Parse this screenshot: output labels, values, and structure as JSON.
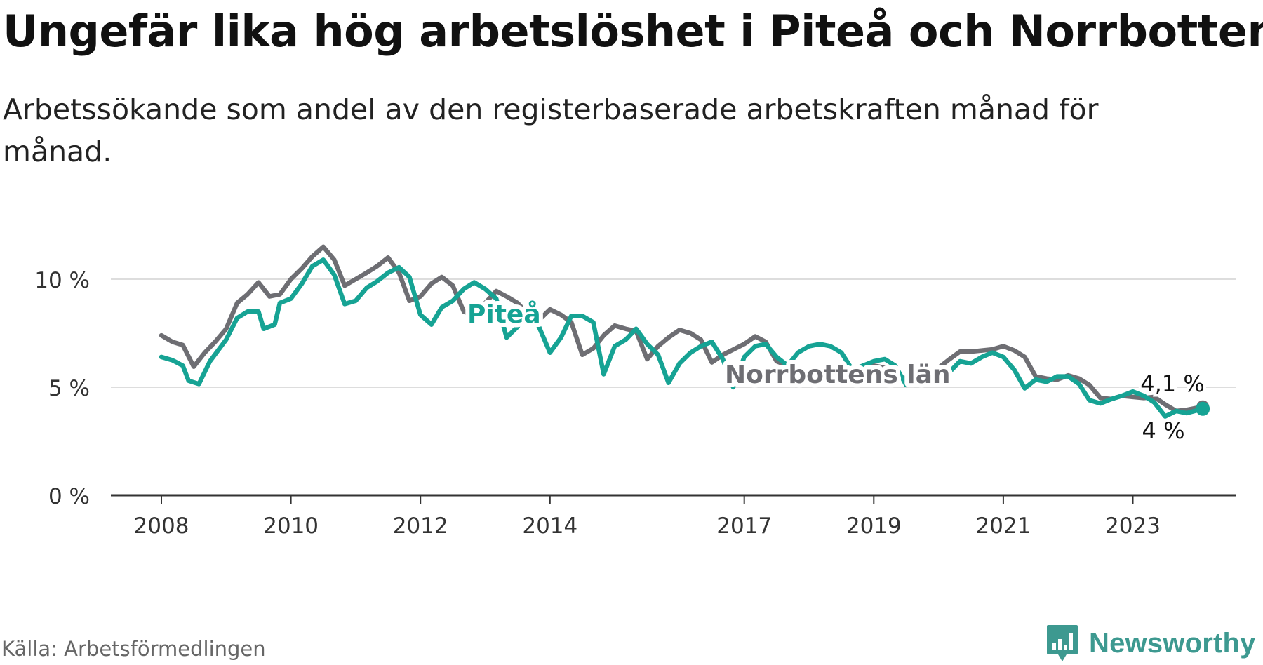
{
  "title": "Ungefär lika hög arbetslöshet i Piteå och Norrbotten",
  "subtitle": "Arbetssökande som andel av den registerbaserade arbetskraften månad för månad.",
  "source": "Källa: Arbetsförmedlingen",
  "brand": "Newsworthy",
  "colors": {
    "pitea": "#16a394",
    "norrbotten": "#6e6e73",
    "grid": "#dddddd",
    "axis": "#333333",
    "brand": "#3d9990"
  },
  "chart_data": {
    "type": "line",
    "title": "Ungefär lika hög arbetslöshet i Piteå och Norrbotten",
    "xlabel": "",
    "ylabel": "",
    "xlim": [
      2007.5,
      2024.92
    ],
    "ylim": [
      0,
      10.5
    ],
    "grid": true,
    "x_ticks": [
      2008,
      2010,
      2012,
      2014,
      2017,
      2019,
      2021,
      2023
    ],
    "x_tick_labels": [
      "2008",
      "2010",
      "2012",
      "2014",
      "2017",
      "2019",
      "2021",
      "2023"
    ],
    "y_ticks": [
      0,
      5,
      10
    ],
    "y_tick_labels": [
      "0 %",
      "5 %",
      "10 %"
    ],
    "series": [
      {
        "name": "Norrbottens län",
        "end_label": "4,1 %",
        "points": [
          [
            2008.0,
            7.4
          ],
          [
            2008.17,
            7.1
          ],
          [
            2008.33,
            6.95
          ],
          [
            2008.5,
            5.95
          ],
          [
            2008.67,
            6.6
          ],
          [
            2008.83,
            7.1
          ],
          [
            2009.0,
            7.7
          ],
          [
            2009.17,
            8.9
          ],
          [
            2009.33,
            9.3
          ],
          [
            2009.5,
            9.85
          ],
          [
            2009.67,
            9.2
          ],
          [
            2009.83,
            9.3
          ],
          [
            2010.0,
            10.0
          ],
          [
            2010.17,
            10.5
          ],
          [
            2010.33,
            11.05
          ],
          [
            2010.5,
            11.5
          ],
          [
            2010.67,
            10.9
          ],
          [
            2010.83,
            9.7
          ],
          [
            2011.0,
            10.0
          ],
          [
            2011.17,
            10.3
          ],
          [
            2011.33,
            10.6
          ],
          [
            2011.5,
            11.0
          ],
          [
            2011.67,
            10.3
          ],
          [
            2011.83,
            9.0
          ],
          [
            2012.0,
            9.2
          ],
          [
            2012.17,
            9.8
          ],
          [
            2012.33,
            10.1
          ],
          [
            2012.5,
            9.7
          ],
          [
            2012.67,
            8.5
          ],
          [
            2012.83,
            8.3
          ],
          [
            2013.0,
            8.9
          ],
          [
            2013.17,
            9.45
          ],
          [
            2013.33,
            9.2
          ],
          [
            2013.5,
            8.9
          ],
          [
            2013.67,
            8.35
          ],
          [
            2013.83,
            8.1
          ],
          [
            2014.0,
            8.6
          ],
          [
            2014.17,
            8.35
          ],
          [
            2014.33,
            8.0
          ],
          [
            2014.5,
            6.5
          ],
          [
            2014.67,
            6.8
          ],
          [
            2014.83,
            7.4
          ],
          [
            2015.0,
            7.85
          ],
          [
            2015.17,
            7.7
          ],
          [
            2015.33,
            7.6
          ],
          [
            2015.5,
            6.3
          ],
          [
            2015.67,
            6.9
          ],
          [
            2015.83,
            7.3
          ],
          [
            2016.0,
            7.65
          ],
          [
            2016.17,
            7.5
          ],
          [
            2016.33,
            7.2
          ],
          [
            2016.5,
            6.15
          ],
          [
            2016.67,
            6.5
          ],
          [
            2017.0,
            7.0
          ],
          [
            2017.17,
            7.35
          ],
          [
            2017.33,
            7.1
          ],
          [
            2017.5,
            6.2
          ],
          [
            2017.67,
            6.0
          ],
          [
            2018.0,
            5.75
          ],
          [
            2018.5,
            5.7
          ],
          [
            2018.83,
            5.85
          ],
          [
            2019.0,
            6.0
          ],
          [
            2019.17,
            5.9
          ],
          [
            2019.33,
            5.55
          ],
          [
            2019.5,
            5.4
          ],
          [
            2019.83,
            5.6
          ],
          [
            2020.0,
            5.9
          ],
          [
            2020.17,
            6.3
          ],
          [
            2020.33,
            6.65
          ],
          [
            2020.5,
            6.65
          ],
          [
            2020.67,
            6.7
          ],
          [
            2020.83,
            6.75
          ],
          [
            2021.0,
            6.9
          ],
          [
            2021.17,
            6.7
          ],
          [
            2021.33,
            6.4
          ],
          [
            2021.5,
            5.5
          ],
          [
            2021.67,
            5.4
          ],
          [
            2021.83,
            5.35
          ],
          [
            2022.0,
            5.55
          ],
          [
            2022.17,
            5.4
          ],
          [
            2022.33,
            5.1
          ],
          [
            2022.5,
            4.5
          ],
          [
            2022.67,
            4.45
          ],
          [
            2022.83,
            4.6
          ],
          [
            2023.0,
            4.55
          ],
          [
            2023.17,
            4.5
          ],
          [
            2023.33,
            4.55
          ],
          [
            2023.5,
            4.2
          ],
          [
            2023.67,
            3.9
          ],
          [
            2023.83,
            3.95
          ],
          [
            2024.08,
            4.1
          ]
        ]
      },
      {
        "name": "Piteå",
        "end_label": "4 %",
        "points": [
          [
            2008.0,
            6.4
          ],
          [
            2008.17,
            6.25
          ],
          [
            2008.33,
            6.0
          ],
          [
            2008.42,
            5.3
          ],
          [
            2008.58,
            5.15
          ],
          [
            2008.75,
            6.2
          ],
          [
            2009.0,
            7.2
          ],
          [
            2009.17,
            8.2
          ],
          [
            2009.33,
            8.5
          ],
          [
            2009.5,
            8.5
          ],
          [
            2009.58,
            7.7
          ],
          [
            2009.75,
            7.9
          ],
          [
            2009.83,
            8.9
          ],
          [
            2010.0,
            9.1
          ],
          [
            2010.17,
            9.8
          ],
          [
            2010.33,
            10.6
          ],
          [
            2010.5,
            10.9
          ],
          [
            2010.67,
            10.2
          ],
          [
            2010.83,
            8.85
          ],
          [
            2011.0,
            9.0
          ],
          [
            2011.17,
            9.6
          ],
          [
            2011.33,
            9.9
          ],
          [
            2011.5,
            10.3
          ],
          [
            2011.67,
            10.55
          ],
          [
            2011.83,
            10.1
          ],
          [
            2012.0,
            8.35
          ],
          [
            2012.17,
            7.9
          ],
          [
            2012.33,
            8.7
          ],
          [
            2012.5,
            9.0
          ],
          [
            2012.67,
            9.55
          ],
          [
            2012.83,
            9.85
          ],
          [
            2013.0,
            9.55
          ],
          [
            2013.17,
            9.1
          ],
          [
            2013.33,
            7.3
          ],
          [
            2013.5,
            7.8
          ],
          [
            2013.67,
            8.8
          ],
          [
            2013.83,
            7.8
          ],
          [
            2014.0,
            6.6
          ],
          [
            2014.17,
            7.3
          ],
          [
            2014.33,
            8.3
          ],
          [
            2014.5,
            8.3
          ],
          [
            2014.67,
            8.0
          ],
          [
            2014.83,
            5.6
          ],
          [
            2015.0,
            6.9
          ],
          [
            2015.17,
            7.2
          ],
          [
            2015.33,
            7.7
          ],
          [
            2015.5,
            7.0
          ],
          [
            2015.67,
            6.5
          ],
          [
            2015.83,
            5.2
          ],
          [
            2016.0,
            6.1
          ],
          [
            2016.17,
            6.6
          ],
          [
            2016.33,
            6.9
          ],
          [
            2016.5,
            7.1
          ],
          [
            2016.67,
            6.3
          ],
          [
            2016.83,
            5.0
          ],
          [
            2017.0,
            6.4
          ],
          [
            2017.17,
            6.9
          ],
          [
            2017.33,
            7.0
          ],
          [
            2017.5,
            6.4
          ],
          [
            2017.67,
            6.0
          ],
          [
            2017.83,
            6.6
          ],
          [
            2018.0,
            6.9
          ],
          [
            2018.17,
            7.0
          ],
          [
            2018.33,
            6.9
          ],
          [
            2018.5,
            6.6
          ],
          [
            2018.67,
            5.8
          ],
          [
            2019.0,
            6.2
          ],
          [
            2019.17,
            6.3
          ],
          [
            2019.33,
            6.0
          ],
          [
            2019.5,
            5.1
          ],
          [
            2019.67,
            5.4
          ],
          [
            2019.83,
            5.6
          ],
          [
            2020.0,
            5.9
          ],
          [
            2020.17,
            5.7
          ],
          [
            2020.33,
            6.2
          ],
          [
            2020.5,
            6.1
          ],
          [
            2020.67,
            6.4
          ],
          [
            2020.83,
            6.6
          ],
          [
            2021.0,
            6.4
          ],
          [
            2021.17,
            5.8
          ],
          [
            2021.33,
            4.95
          ],
          [
            2021.5,
            5.35
          ],
          [
            2021.67,
            5.25
          ],
          [
            2021.83,
            5.5
          ],
          [
            2022.0,
            5.5
          ],
          [
            2022.17,
            5.15
          ],
          [
            2022.33,
            4.4
          ],
          [
            2022.5,
            4.25
          ],
          [
            2022.67,
            4.45
          ],
          [
            2022.83,
            4.6
          ],
          [
            2023.0,
            4.8
          ],
          [
            2023.17,
            4.6
          ],
          [
            2023.33,
            4.3
          ],
          [
            2023.5,
            3.65
          ],
          [
            2023.67,
            3.9
          ],
          [
            2023.83,
            3.8
          ],
          [
            2024.08,
            4.0
          ]
        ]
      }
    ]
  }
}
